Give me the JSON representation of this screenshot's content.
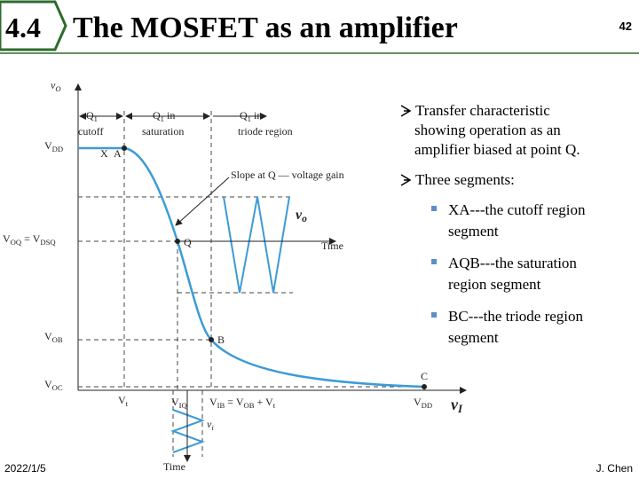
{
  "header": {
    "section": "4.4",
    "title": "The MOSFET as an amplifier",
    "page": "42"
  },
  "figure": {
    "labels": [
      [
        "v",
        "O"
      ],
      [
        "V",
        "DD"
      ],
      [
        "V",
        "OQ",
        " = V",
        "DSQ"
      ],
      [
        "V",
        "OB"
      ],
      [
        "V",
        "OC"
      ],
      [
        "V",
        "t"
      ],
      [
        "V",
        "IQ"
      ],
      [
        "V",
        "IB",
        " = V",
        "OB",
        " + V",
        "t"
      ],
      [
        "V",
        "DD"
      ],
      [
        "v",
        "I"
      ],
      [
        "X"
      ],
      [
        "A"
      ],
      [
        "Q"
      ],
      [
        "B"
      ],
      [
        "C"
      ],
      [
        "Q",
        "1"
      ],
      [
        "cutoff"
      ],
      [
        "Q",
        "1",
        " in"
      ],
      [
        "saturation"
      ],
      [
        "Q",
        "1",
        " in"
      ],
      [
        "triode region"
      ],
      [
        "Slope at Q — voltage gain"
      ],
      [
        "v",
        "o"
      ],
      [
        "Time"
      ],
      [
        "v",
        "i"
      ],
      [
        "Time"
      ]
    ]
  },
  "bullets": [
    {
      "lines": [
        "Transfer characteristic",
        "showing operation as an",
        "amplifier biased at point Q."
      ]
    },
    {
      "lines": [
        "Three segments:"
      ],
      "items": [
        {
          "lines": [
            "XA---the cutoff region",
            "segment"
          ]
        },
        {
          "lines": [
            "AQB---the saturation",
            "region segment"
          ]
        },
        {
          "lines": [
            "BC---the triode region",
            "segment"
          ]
        }
      ]
    }
  ],
  "footer": {
    "date": "2022/1/5",
    "author": "J. Chen"
  }
}
